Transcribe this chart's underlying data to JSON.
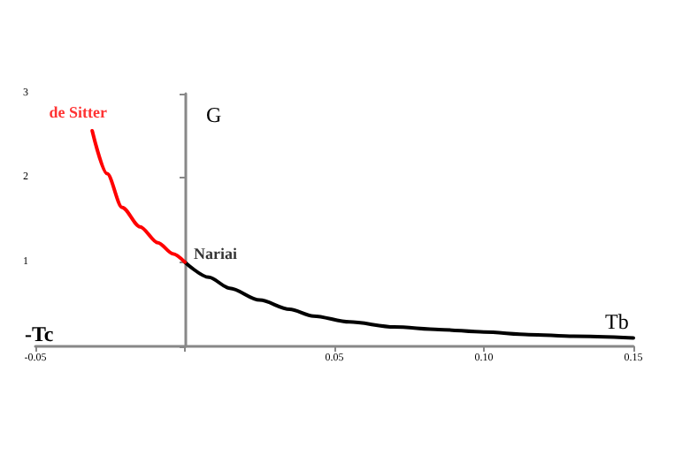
{
  "chart_data": {
    "type": "line",
    "xlabel": "Tb",
    "ylabel": "G",
    "xlim": [
      -0.05,
      0.15
    ],
    "ylim": [
      0,
      3
    ],
    "xticks": [
      -0.05,
      {
        "value": 0,
        "label": null
      },
      0.05,
      {
        "value": 0.1,
        "label": "0.10"
      },
      0.15
    ],
    "yticks": [
      {
        "value": 0,
        "label": null
      },
      1,
      2,
      3
    ],
    "marker": "none",
    "line_style": "solid",
    "series": [
      {
        "color": "#000000",
        "x": [
          0,
          0.008,
          0.015,
          0.025,
          0.035,
          0.043,
          0.055,
          0.07,
          0.085,
          0.1,
          0.115,
          0.13,
          0.15
        ],
        "values": [
          1,
          0.82,
          0.69,
          0.55,
          0.44,
          0.36,
          0.29,
          0.23,
          0.2,
          0.17,
          0.14,
          0.12,
          0.1
        ]
      },
      {
        "color": "#ff0000",
        "x": [
          -0.031,
          -0.026,
          -0.021,
          -0.015,
          -0.009,
          -0.004,
          0
        ],
        "values": [
          2.56,
          2.05,
          1.65,
          1.42,
          1.23,
          1.1,
          1
        ]
      }
    ],
    "annotations": [
      {
        "text": "de Sitter",
        "x": -0.031,
        "y": 2.56
      },
      {
        "text": "Nariai",
        "x": 0,
        "y": 1
      },
      "-Tc"
    ]
  }
}
